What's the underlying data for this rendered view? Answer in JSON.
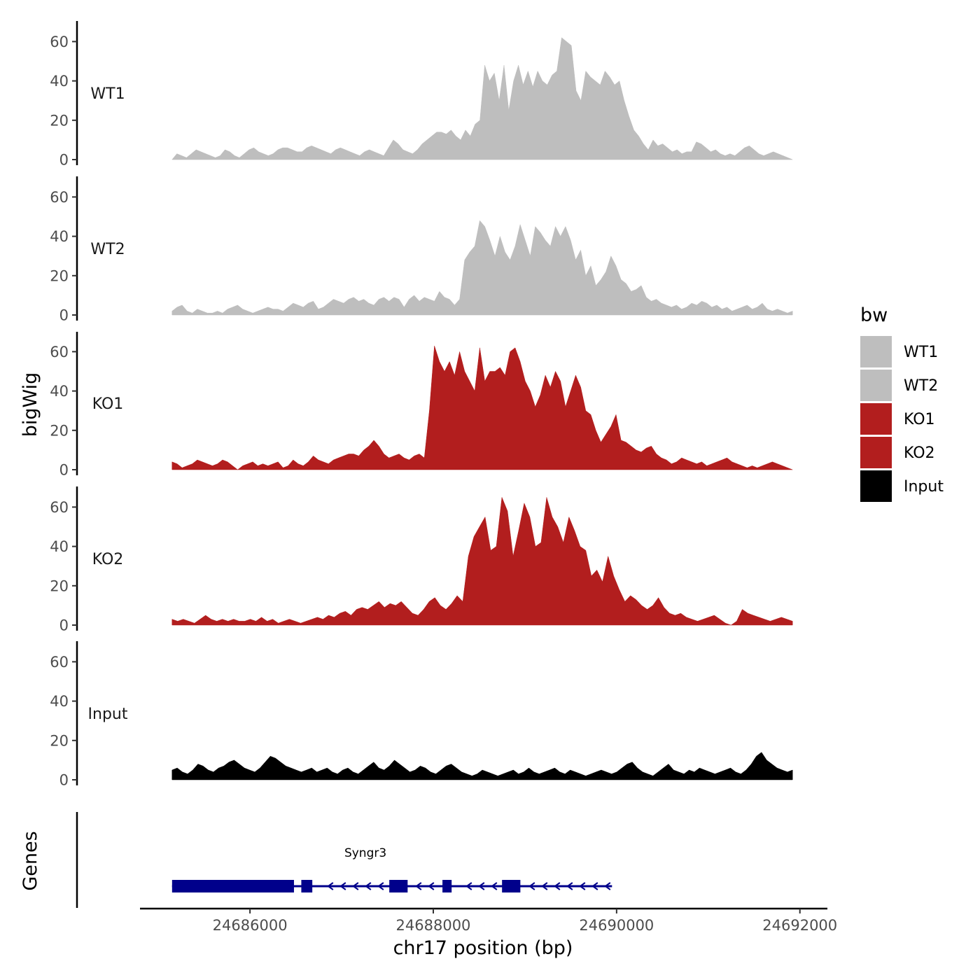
{
  "chart_data": {
    "type": "area",
    "xlabel": "chr17 position (bp)",
    "ylabel": "bigWig",
    "xlim": [
      24684800,
      24692300
    ],
    "x_range": [
      24685150,
      24691920
    ],
    "ylim": [
      0,
      70
    ],
    "y_ticks": [
      0,
      20,
      40,
      60
    ],
    "y_tick_labels": [
      "0",
      "20",
      "40",
      "60"
    ],
    "x_ticks": [
      24686000,
      24688000,
      24690000,
      24692000
    ],
    "x_tick_labels": [
      "24686000",
      "24688000",
      "24690000",
      "24692000"
    ],
    "legend": {
      "title": "bw",
      "position": "right",
      "entries": [
        {
          "label": "WT1",
          "color": "#bebebe"
        },
        {
          "label": "WT2",
          "color": "#bebebe"
        },
        {
          "label": "KO1",
          "color": "#b21e1e"
        },
        {
          "label": "KO2",
          "color": "#b21e1e"
        },
        {
          "label": "Input",
          "color": "#000000"
        }
      ]
    },
    "series": [
      {
        "name": "WT1",
        "color": "#bebebe",
        "values": [
          0,
          3,
          2,
          1,
          3,
          5,
          4,
          3,
          2,
          1,
          2,
          5,
          4,
          2,
          1,
          3,
          5,
          6,
          4,
          3,
          2,
          3,
          5,
          6,
          6,
          5,
          4,
          4,
          6,
          7,
          6,
          5,
          4,
          3,
          5,
          6,
          5,
          4,
          3,
          2,
          4,
          5,
          4,
          3,
          2,
          6,
          10,
          8,
          5,
          4,
          3,
          5,
          8,
          10,
          12,
          14,
          14,
          13,
          15,
          12,
          10,
          15,
          12,
          18,
          20,
          48,
          40,
          44,
          30,
          48,
          25,
          40,
          48,
          38,
          45,
          37,
          45,
          40,
          38,
          43,
          45,
          62,
          60,
          58,
          35,
          30,
          45,
          42,
          40,
          38,
          45,
          42,
          38,
          40,
          30,
          22,
          15,
          12,
          8,
          5,
          10,
          7,
          8,
          6,
          4,
          5,
          3,
          4,
          4,
          9,
          8,
          6,
          4,
          5,
          3,
          2,
          3,
          2,
          4,
          6,
          7,
          5,
          3,
          2,
          3,
          4,
          3,
          2,
          1,
          0
        ]
      },
      {
        "name": "WT2",
        "color": "#bebebe",
        "values": [
          2,
          4,
          5,
          2,
          1,
          3,
          2,
          1,
          1,
          2,
          1,
          3,
          4,
          5,
          3,
          2,
          1,
          2,
          3,
          4,
          3,
          3,
          2,
          4,
          6,
          5,
          4,
          6,
          7,
          3,
          4,
          6,
          8,
          7,
          6,
          8,
          9,
          7,
          8,
          6,
          5,
          8,
          9,
          7,
          9,
          8,
          4,
          8,
          10,
          7,
          9,
          8,
          7,
          12,
          9,
          8,
          5,
          8,
          28,
          32,
          35,
          48,
          45,
          38,
          30,
          40,
          32,
          28,
          35,
          46,
          38,
          30,
          45,
          42,
          38,
          35,
          45,
          40,
          45,
          38,
          28,
          33,
          20,
          25,
          15,
          18,
          22,
          30,
          25,
          18,
          16,
          12,
          13,
          15,
          9,
          7,
          8,
          6,
          5,
          4,
          5,
          3,
          4,
          6,
          5,
          7,
          6,
          4,
          5,
          3,
          4,
          2,
          3,
          4,
          5,
          3,
          4,
          6,
          3,
          2,
          3,
          2,
          1,
          2
        ]
      },
      {
        "name": "KO1",
        "color": "#b21e1e",
        "values": [
          4,
          3,
          1,
          2,
          3,
          5,
          4,
          3,
          2,
          3,
          5,
          4,
          2,
          0,
          2,
          3,
          4,
          2,
          3,
          2,
          3,
          4,
          1,
          2,
          5,
          3,
          2,
          4,
          7,
          5,
          4,
          3,
          5,
          6,
          7,
          8,
          8,
          7,
          10,
          12,
          15,
          12,
          8,
          6,
          7,
          8,
          6,
          5,
          7,
          8,
          6,
          30,
          63,
          55,
          50,
          55,
          48,
          60,
          50,
          45,
          40,
          62,
          45,
          50,
          50,
          52,
          48,
          60,
          62,
          55,
          45,
          40,
          32,
          38,
          48,
          42,
          50,
          45,
          32,
          40,
          48,
          42,
          30,
          28,
          20,
          14,
          18,
          22,
          28,
          15,
          14,
          12,
          10,
          9,
          11,
          12,
          8,
          6,
          5,
          3,
          4,
          6,
          5,
          4,
          3,
          4,
          2,
          3,
          4,
          5,
          6,
          4,
          3,
          2,
          1,
          2,
          1,
          2,
          3,
          4,
          3,
          2,
          1,
          0
        ]
      },
      {
        "name": "KO2",
        "color": "#b21e1e",
        "values": [
          3,
          2,
          3,
          2,
          1,
          3,
          5,
          3,
          2,
          3,
          2,
          3,
          2,
          2,
          3,
          2,
          4,
          2,
          3,
          1,
          2,
          3,
          2,
          1,
          2,
          3,
          4,
          3,
          5,
          4,
          6,
          7,
          5,
          8,
          9,
          8,
          10,
          12,
          9,
          11,
          10,
          12,
          9,
          6,
          5,
          8,
          12,
          14,
          10,
          8,
          11,
          15,
          12,
          35,
          45,
          50,
          55,
          38,
          40,
          65,
          58,
          35,
          48,
          62,
          55,
          40,
          42,
          65,
          55,
          50,
          42,
          55,
          48,
          40,
          38,
          25,
          28,
          22,
          35,
          25,
          18,
          12,
          15,
          13,
          10,
          8,
          10,
          14,
          9,
          6,
          5,
          6,
          4,
          3,
          2,
          3,
          4,
          5,
          3,
          1,
          0,
          2,
          8,
          6,
          5,
          4,
          3,
          2,
          3,
          4,
          3,
          2
        ]
      },
      {
        "name": "Input",
        "color": "#000000",
        "values": [
          5,
          6,
          4,
          3,
          5,
          8,
          7,
          5,
          4,
          6,
          7,
          9,
          10,
          8,
          6,
          5,
          4,
          6,
          9,
          12,
          11,
          9,
          7,
          6,
          5,
          4,
          5,
          6,
          4,
          5,
          6,
          4,
          3,
          5,
          6,
          4,
          3,
          5,
          7,
          9,
          6,
          5,
          7,
          10,
          8,
          6,
          4,
          5,
          7,
          6,
          4,
          3,
          5,
          7,
          8,
          6,
          4,
          3,
          2,
          3,
          5,
          4,
          3,
          2,
          3,
          4,
          5,
          3,
          4,
          6,
          4,
          3,
          4,
          5,
          6,
          4,
          3,
          5,
          4,
          3,
          2,
          3,
          4,
          5,
          4,
          3,
          4,
          6,
          8,
          9,
          6,
          4,
          3,
          2,
          4,
          6,
          8,
          5,
          4,
          3,
          5,
          4,
          6,
          5,
          4,
          3,
          4,
          5,
          6,
          4,
          3,
          5,
          8,
          12,
          14,
          10,
          8,
          6,
          5,
          4,
          5
        ]
      }
    ],
    "genes": {
      "panel_label": "Genes",
      "name": "Syngr3",
      "start": 24685150,
      "end": 24689950,
      "strand": "-",
      "color": "#00008b",
      "exons": [
        [
          24685150,
          24686480
        ],
        [
          24686560,
          24686680
        ],
        [
          24687520,
          24687720
        ],
        [
          24688100,
          24688200
        ],
        [
          24688750,
          24688950
        ]
      ]
    }
  }
}
